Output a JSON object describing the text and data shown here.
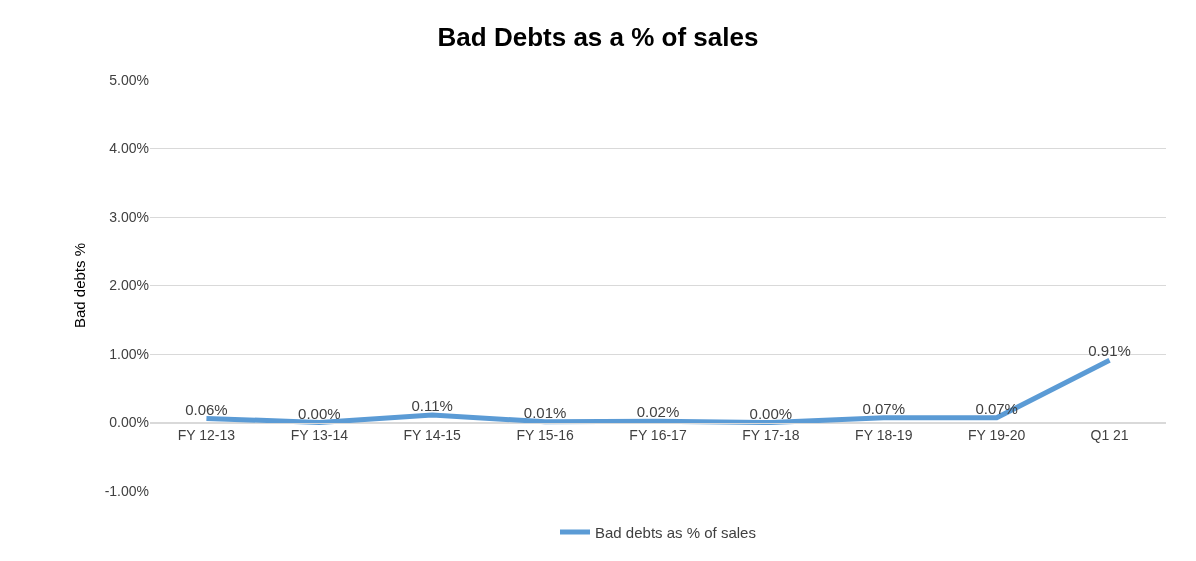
{
  "chart_data": {
    "type": "line",
    "title": "Bad Debts as a % of sales",
    "ylabel": "Bad debts %",
    "categories": [
      "FY 12-13",
      "FY 13-14",
      "FY 14-15",
      "FY 15-16",
      "FY 16-17",
      "FY 17-18",
      "FY 18-19",
      "FY 19-20",
      "Q1 21"
    ],
    "series": [
      {
        "name": "Bad debts as % of sales",
        "color": "#5b9bd5",
        "values": [
          0.06,
          0.0,
          0.11,
          0.01,
          0.02,
          0.0,
          0.07,
          0.07,
          0.91
        ],
        "value_labels": [
          "0.06%",
          "0.00%",
          "0.11%",
          "0.01%",
          "0.02%",
          "0.00%",
          "0.07%",
          "0.07%",
          "0.91%"
        ]
      }
    ],
    "ylim": [
      -1,
      5
    ],
    "yticks": [
      {
        "value": -1,
        "label": "-1.00%"
      },
      {
        "value": 0,
        "label": "0.00%"
      },
      {
        "value": 1,
        "label": "1.00%"
      },
      {
        "value": 2,
        "label": "2.00%"
      },
      {
        "value": 3,
        "label": "3.00%"
      },
      {
        "value": 4,
        "label": "4.00%"
      },
      {
        "value": 5,
        "label": "5.00%"
      }
    ],
    "grid": "y",
    "legend": "bottom",
    "marker": "none",
    "line_style": "solid"
  }
}
